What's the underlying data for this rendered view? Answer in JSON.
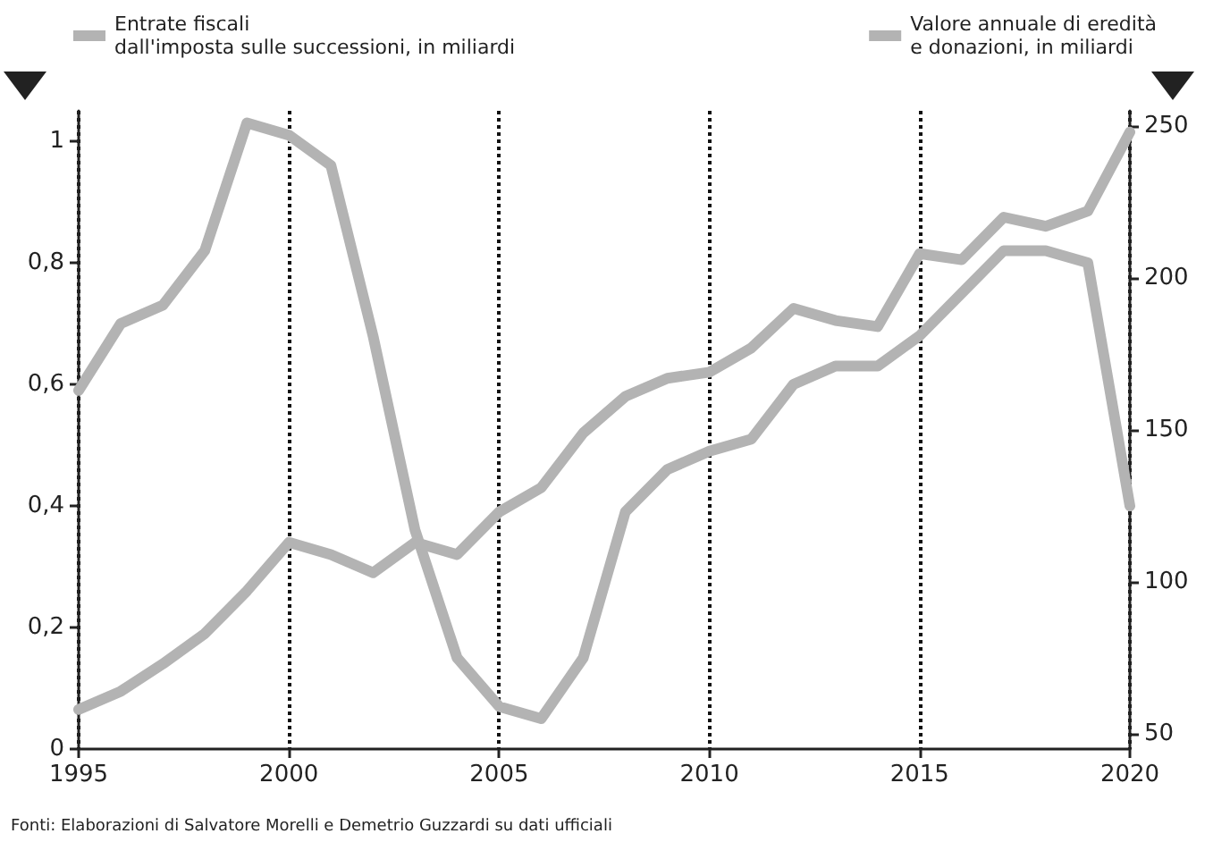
{
  "chart_data": {
    "type": "line",
    "x": [
      1995,
      1996,
      1997,
      1998,
      1999,
      2000,
      2001,
      2002,
      2003,
      2004,
      2005,
      2006,
      2007,
      2008,
      2009,
      2010,
      2011,
      2012,
      2013,
      2014,
      2015,
      2016,
      2017,
      2018,
      2019,
      2020
    ],
    "series": [
      {
        "name": "Entrate fiscali\ndall'imposta sulle successioni, in miliardi",
        "color": "#b3b3b3",
        "values": [
          0.59,
          0.7,
          0.73,
          0.82,
          1.03,
          1.01,
          0.96,
          0.68,
          0.36,
          0.15,
          0.07,
          0.05,
          0.15,
          0.39,
          0.46,
          0.49,
          0.51,
          0.6,
          0.63,
          0.63,
          0.68,
          0.75,
          0.82,
          0.82,
          0.8,
          0.4
        ]
      },
      {
        "name": "Valore annuale di eredità\ne donazioni, in miliardi",
        "color": "#b3b3b3",
        "axis": "y2",
        "values": [
          58,
          64,
          73,
          83,
          97,
          113,
          109,
          103,
          113,
          109,
          123,
          131,
          149,
          161,
          167,
          169,
          177,
          190,
          186,
          184,
          208,
          206,
          220,
          217,
          222,
          248
        ]
      }
    ],
    "xlim": [
      1995,
      2020
    ],
    "xticks": [
      1995,
      2000,
      2005,
      2010,
      2015,
      2020
    ],
    "ylim": [
      0,
      1.05
    ],
    "yticks": [
      0,
      {
        "value": 0.2,
        "label": "0,2"
      },
      {
        "value": 0.4,
        "label": "0,4"
      },
      {
        "value": 0.6,
        "label": "0,6"
      },
      {
        "value": 0.8,
        "label": "0,8"
      },
      1
    ],
    "y2lim": [
      45,
      255
    ],
    "y2ticks": [
      50,
      100,
      150,
      200,
      250
    ],
    "grid": "x",
    "line_style": "solid",
    "marker": "none",
    "legend": "top",
    "annotations": [
      "Fonti: Elaborazioni di Salvatore Morelli e Demetrio Guzzardi su dati ufficiali"
    ]
  }
}
